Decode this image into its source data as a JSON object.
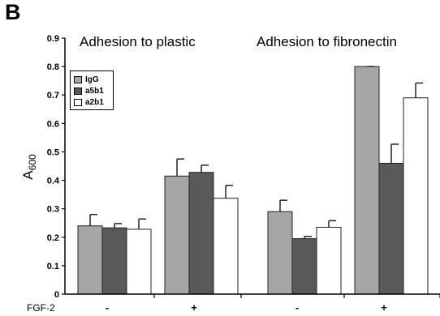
{
  "panel_label": "B",
  "chart_data": {
    "type": "bar",
    "groups": [
      {
        "title": "Adhesion to plastic",
        "categories": [
          "-",
          "+"
        ]
      },
      {
        "title": "Adhesion to fibronectin",
        "categories": [
          "-",
          "+"
        ]
      }
    ],
    "x_axis_label": "FGF-2",
    "ylabel": "A600",
    "ylim": [
      0,
      0.9
    ],
    "yticks": [
      "0",
      "0.1",
      "0.2",
      "0.3",
      "0.4",
      "0.5",
      "0.6",
      "0.7",
      "0.8",
      "0.9"
    ],
    "series": [
      {
        "name": "IgG",
        "color": "#a6a6a6",
        "values": [
          0.24,
          0.415,
          0.29,
          0.8
        ],
        "errors": [
          0.04,
          0.06,
          0.04,
          0.0
        ]
      },
      {
        "name": "a5b1",
        "color": "#595959",
        "values": [
          0.233,
          0.428,
          0.195,
          0.46
        ],
        "errors": [
          0.015,
          0.025,
          0.008,
          0.067
        ]
      },
      {
        "name": "a2b1",
        "color": "#ffffff",
        "values": [
          0.228,
          0.337,
          0.235,
          0.69
        ],
        "errors": [
          0.036,
          0.045,
          0.023,
          0.052
        ]
      }
    ],
    "grid": false,
    "legend_position": "top-left"
  }
}
